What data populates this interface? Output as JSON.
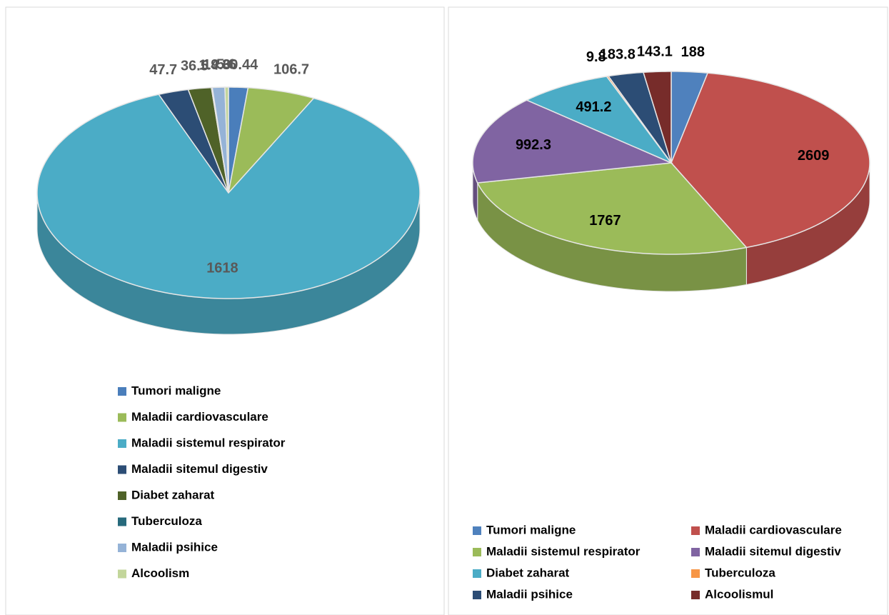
{
  "chart_data": [
    {
      "type": "pie3d",
      "categories": [
        "Tumori maligne",
        "Maladii cardiovasculare",
        "Maladii  sistemul respirator",
        "Maladii sitemul digestiv",
        "Diabet zaharat",
        "Tuberculoza",
        "Maladii psihice",
        "Alcoolism"
      ],
      "values": [
        30.44,
        106.7,
        1618,
        47.7,
        36.5,
        1.4,
        19.6,
        5.6
      ],
      "colors": [
        "#4a7ebb",
        "#9bbb59",
        "#4bacc6",
        "#2c4d75",
        "#4f6228",
        "#276a7c",
        "#95b3d7",
        "#c3d69b"
      ]
    },
    {
      "type": "pie3d",
      "categories": [
        "Tumori maligne",
        "Maladii cardiovasculare",
        "Maladii sistemul respirator",
        "Maladii sitemul digestiv",
        "Diabet zaharat",
        "Tuberculoza",
        "Maladii psihice",
        "Alcoolismul"
      ],
      "values": [
        188,
        2609,
        1767,
        992.3,
        491.2,
        9.8,
        183.8,
        143.1
      ],
      "colors": [
        "#4f81bd",
        "#c0504d",
        "#9bbb59",
        "#8064a2",
        "#4bacc6",
        "#f79646",
        "#2c4d75",
        "#772c2a"
      ]
    }
  ]
}
